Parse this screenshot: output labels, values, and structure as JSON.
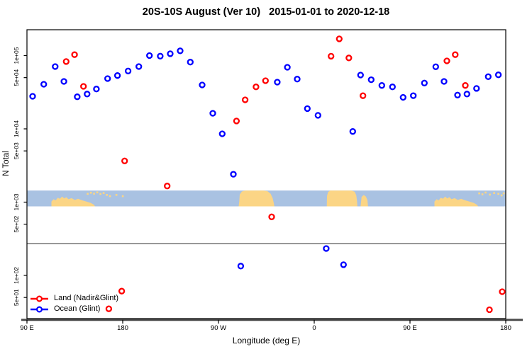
{
  "chart_data": {
    "type": "scatter",
    "title": "20S-10S August (Ver 10)   2015-01-01 to 2020-12-18",
    "xlabel": "Longitude (deg E)",
    "ylabel": "N Total",
    "y_scale": "log",
    "y_ticks": [
      {
        "value": 100000,
        "label": "1e+05"
      },
      {
        "value": 50000,
        "label": "5e+04"
      },
      {
        "value": 10000,
        "label": "1e+04"
      },
      {
        "value": 5000,
        "label": "5e+03"
      },
      {
        "value": 1000,
        "label": "1e+03"
      },
      {
        "value": 500,
        "label": "5e+02"
      },
      {
        "value": 100,
        "label": "1e+02"
      },
      {
        "value": 50,
        "label": "5e+01"
      }
    ],
    "x_ticks": [
      {
        "axis_deg": 0,
        "label": "90 E"
      },
      {
        "axis_deg": 90,
        "label": "180"
      },
      {
        "axis_deg": 180,
        "label": "90 W"
      },
      {
        "axis_deg": 270,
        "label": "0"
      },
      {
        "axis_deg": 360,
        "label": "90 E"
      },
      {
        "axis_deg": 450,
        "label": "180"
      }
    ],
    "x_range_axis_deg": [
      0,
      450
    ],
    "axis_color": "#000000",
    "heavy_axis_color": "#4c4c4c",
    "reference_line": {
      "n": 272,
      "color": "#7f7f7f"
    },
    "map_band": {
      "top_n": 1440,
      "bottom_n": 875,
      "ocean_color": "#a9c2e2",
      "land_color": "#fbd585",
      "land_segments": [
        {
          "name": "australia",
          "points": [
            [
              23,
              1
            ],
            [
              23,
              0.7
            ],
            [
              25,
              0.55
            ],
            [
              27,
              0.62
            ],
            [
              29,
              0.45
            ],
            [
              31,
              0.52
            ],
            [
              33,
              0.38
            ],
            [
              35,
              0.5
            ],
            [
              37,
              0.42
            ],
            [
              39,
              0.55
            ],
            [
              42,
              0.48
            ],
            [
              45,
              0.6
            ],
            [
              48,
              0.52
            ],
            [
              52,
              0.62
            ],
            [
              56,
              0.7
            ],
            [
              60,
              0.78
            ],
            [
              63,
              0.9
            ],
            [
              64,
              1
            ]
          ]
        },
        {
          "name": "south-america",
          "points": [
            [
              199,
              1
            ],
            [
              199.5,
              0.7
            ],
            [
              200,
              0.25
            ],
            [
              202,
              0.06
            ],
            [
              205,
              0
            ],
            [
              222,
              0
            ],
            [
              226,
              0.04
            ],
            [
              229,
              0.2
            ],
            [
              231,
              0.5
            ],
            [
              232,
              0.8
            ],
            [
              232.5,
              1
            ]
          ]
        },
        {
          "name": "africa",
          "points": [
            [
              281.8,
              1
            ],
            [
              282,
              0.35
            ],
            [
              283,
              0.1
            ],
            [
              285,
              0
            ],
            [
              305,
              0
            ],
            [
              308,
              0.08
            ],
            [
              309.5,
              0.3
            ],
            [
              310.3,
              0.7
            ],
            [
              310.5,
              1
            ]
          ]
        },
        {
          "name": "madagascar",
          "points": [
            [
              313.5,
              1
            ],
            [
              314.5,
              0.4
            ],
            [
              316.5,
              0.28
            ],
            [
              318.5,
              0.38
            ],
            [
              320,
              0.6
            ],
            [
              320.5,
              1
            ]
          ]
        },
        {
          "name": "australia-repeat",
          "points": [
            [
              383,
              1
            ],
            [
              383,
              0.7
            ],
            [
              385,
              0.55
            ],
            [
              387,
              0.62
            ],
            [
              389,
              0.45
            ],
            [
              391,
              0.52
            ],
            [
              393,
              0.38
            ],
            [
              395,
              0.5
            ],
            [
              397,
              0.42
            ],
            [
              399,
              0.55
            ],
            [
              402,
              0.48
            ],
            [
              405,
              0.6
            ],
            [
              408,
              0.52
            ],
            [
              412,
              0.62
            ],
            [
              416,
              0.7
            ],
            [
              420,
              0.78
            ],
            [
              423,
              0.9
            ],
            [
              424,
              1
            ]
          ]
        }
      ],
      "island_speckles": [
        [
          57,
          0.15
        ],
        [
          60,
          0.08
        ],
        [
          63,
          0.14
        ],
        [
          66,
          0.06
        ],
        [
          69,
          0.16
        ],
        [
          72,
          0.1
        ],
        [
          75,
          0.22
        ],
        [
          78,
          0.3
        ],
        [
          84,
          0.22
        ],
        [
          90,
          0.3
        ],
        [
          425,
          0.12
        ],
        [
          428,
          0.18
        ],
        [
          431,
          0.07
        ],
        [
          435,
          0.2
        ],
        [
          439,
          0.1
        ],
        [
          443,
          0.15
        ],
        [
          446,
          0.25
        ],
        [
          448,
          0.12
        ]
      ]
    },
    "series": [
      {
        "name": "Land (Nadir&Glint)",
        "color": "#ff0000",
        "points": [
          [
            36.9,
            83000
          ],
          [
            44.7,
            103000
          ],
          [
            53.1,
            38000
          ],
          [
            91.8,
            3650
          ],
          [
            131.8,
            1660
          ],
          [
            196.9,
            12800
          ],
          [
            205.1,
            24900
          ],
          [
            215.3,
            37400
          ],
          [
            224.2,
            45400
          ],
          [
            230,
            630
          ],
          [
            285.8,
            98000
          ],
          [
            293.5,
            169000
          ],
          [
            302.5,
            93000
          ],
          [
            315.8,
            28300
          ],
          [
            394.7,
            84700
          ],
          [
            402.5,
            103000
          ],
          [
            412,
            39100
          ],
          [
            89.1,
            61
          ],
          [
            76.9,
            35
          ],
          [
            434.7,
            34
          ],
          [
            446.7,
            60
          ]
        ]
      },
      {
        "name": "Ocean (Glint)",
        "color": "#0000ff",
        "points": [
          [
            5.3,
            27800
          ],
          [
            15.8,
            40600
          ],
          [
            26.5,
            70800
          ],
          [
            34.7,
            44400
          ],
          [
            47.3,
            27400
          ],
          [
            56.5,
            29900
          ],
          [
            65.3,
            35000
          ],
          [
            75.8,
            48500
          ],
          [
            85.1,
            53400
          ],
          [
            95.1,
            61600
          ],
          [
            105.1,
            70800
          ],
          [
            115.1,
            100000
          ],
          [
            125.3,
            98200
          ],
          [
            134.7,
            106000
          ],
          [
            144,
            116000
          ],
          [
            153.5,
            81500
          ],
          [
            164.7,
            39700
          ],
          [
            174.7,
            16300
          ],
          [
            183.5,
            8550
          ],
          [
            194,
            2400
          ],
          [
            200.9,
            134
          ],
          [
            235.3,
            43400
          ],
          [
            244.7,
            69300
          ],
          [
            254,
            47800
          ],
          [
            263.5,
            18900
          ],
          [
            273.5,
            15300
          ],
          [
            281.3,
            233
          ],
          [
            297.5,
            140
          ],
          [
            306.2,
            9200
          ],
          [
            313.5,
            54200
          ],
          [
            323.5,
            46800
          ],
          [
            333.5,
            39100
          ],
          [
            343.5,
            37400
          ],
          [
            353.5,
            26900
          ],
          [
            363.1,
            28400
          ],
          [
            373.5,
            42200
          ],
          [
            384.2,
            70300
          ],
          [
            392,
            44400
          ],
          [
            404.7,
            28900
          ],
          [
            413.5,
            29900
          ],
          [
            422.5,
            35600
          ],
          [
            433.5,
            51500
          ],
          [
            443.1,
            54600
          ]
        ]
      }
    ],
    "legend": {
      "position": "bottom-left",
      "items": [
        {
          "label": "Land (Nadir&Glint)",
          "color": "#ff0000"
        },
        {
          "label": "Ocean (Glint)",
          "color": "#0000ff"
        }
      ]
    }
  }
}
